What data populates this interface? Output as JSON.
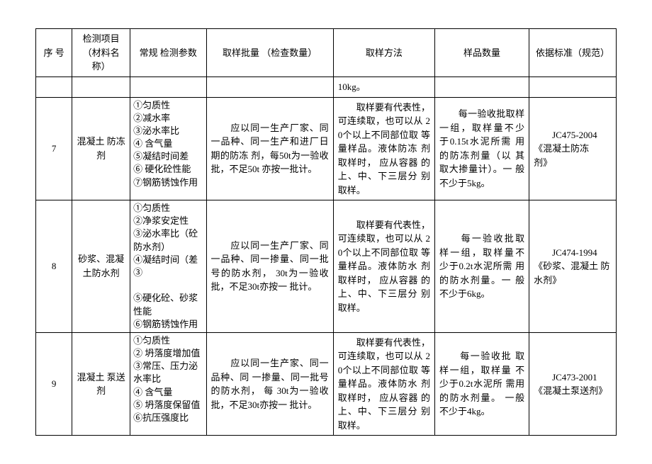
{
  "columns": [
    "序  号",
    "检测项目\n（材料名称）",
    "常规 检测参数",
    "取样批量 （检查数量）",
    "取样方法",
    "样品数量",
    "依据标准（规范）"
  ],
  "partial_row": {
    "method": "10kg。"
  },
  "rows": [
    {
      "seq": "7",
      "name": "混凝土 防冻剂",
      "params": [
        "①匀质性",
        "②减水率",
        "③泌水率比",
        "④ 含气量",
        "⑤凝结时间差",
        "⑥ 硬化砼性能",
        "⑦钢筋锈蚀作用"
      ],
      "batch": "　　应以同一生产厂家、同一品种、同一生产和进厂日期的防冻 剂，每50t为一验收批，不足50t 亦按一批计。",
      "method": "　　取样要有代表性，可连续取，也可以从 20个以上不同部位取 等量样品。液体防冻 剂取样时， 应从容器 的上、中、下三层分 别取样。",
      "qty": "　　每一验收批取样一组，取样量不少 于0.15t水泥所需 用的防冻剂量（以 其取大掺量计）。一 般不少于5kg。",
      "std": "　　JC475-2004\n《混凝土防冻\n剂》"
    },
    {
      "seq": "8",
      "name": "砂浆、混凝土防水剂",
      "params": [
        "①匀质性",
        "②净浆安定性",
        "③泌水率比（砼\n防水剂）",
        "④凝结时间（差③",
        "",
        "⑤硬化砼、砂浆\n性能",
        "⑥钢筋锈蚀作用"
      ],
      "batch": "　　应以同一生产厂家、同一品种、同一掺量、同一批号的防水剂， 30t为一验收批，不足30t亦按一 批计。",
      "method": "　　取样要有代表性，可连续取，也可以从 20个以上不同部位取 等量样品。液体防水 剂取样时， 应从容器 的上、中、下三层分 别取样。",
      "qty": "　　每一验收批取 样一组，取样量不 少于0.2t水泥所需 用的防水剂量。一 般不少于6kg。",
      "std": "　　JC474-1994\n《砂浆、混凝土 防水剂》"
    },
    {
      "seq": "9",
      "name": "混凝土 泵送剂",
      "params": [
        "①匀质性",
        "② 坍落度增加值",
        "③常压、压力泌\n水率比",
        "④ 含气量",
        "⑤ 坍落度保留值",
        "⑥抗压强度比"
      ],
      "batch": "　　应以同一生产家、同一品种、同 一掺量、同一批号的防水剂， 每 30t为一验收批，不足30t亦按一 批计。",
      "method": "　　取样要有代表性，可连续取，也可以从 20个以上不同部位取 等量样品。液体防水 剂取样时， 应从容器 的上、中、下三层分 别取样。",
      "qty": "　　每一验收批 取样一组，取样量 不少于0.2t水泥所 需用的防水剂量。 一般不少于4kg。",
      "std": "　　JC473-2001\n《混凝土泵送剂》"
    }
  ]
}
